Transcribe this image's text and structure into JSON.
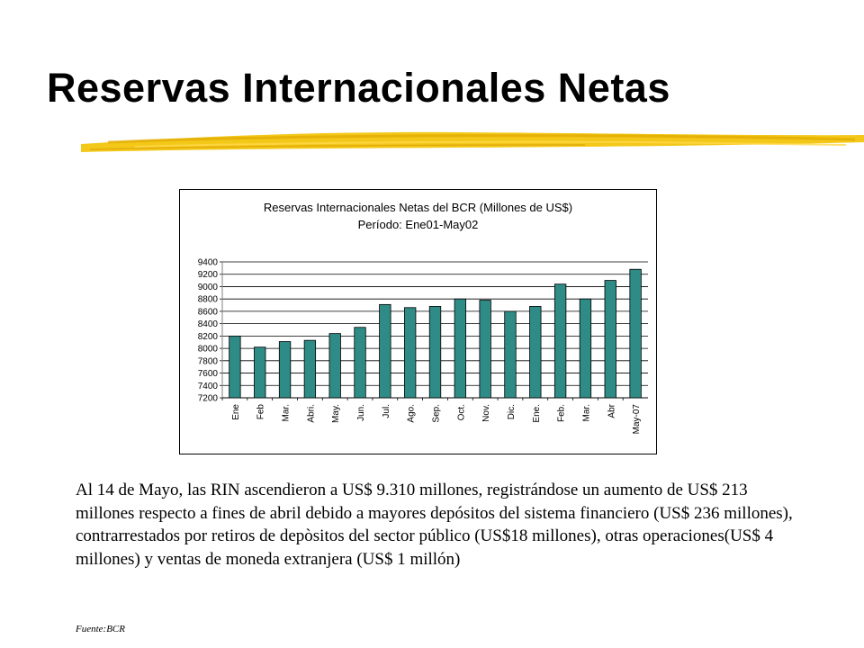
{
  "slide": {
    "title": "Reservas Internacionales Netas",
    "paragraph": "Al 14 de Mayo, las RIN ascendieron a US$ 9.310 millones, registrándose un aumento de US$ 213 millones respecto a fines de abril debido a mayores depósitos del sistema financiero (US$ 236 millones), contrarrestados por retiros de depòsitos del sector público (US$18 millones), otras operaciones(US$ 4 millones) y ventas de moneda extranjera (US$ 1 millón)",
    "source": "Fuente:BCR",
    "accent_color": "#f2c200"
  },
  "chart_data": {
    "type": "bar",
    "title": "Reservas Internacionales Netas del BCR (Millones de US$)",
    "subtitle": "Período: Ene01-May02",
    "xlabel": "",
    "ylabel": "",
    "categories": [
      "Ene",
      "Feb",
      "Mar.",
      "Abri.",
      "May.",
      "Jun.",
      "Jul.",
      "Ago.",
      "Sep.",
      "Oct.",
      "Nov.",
      "Dic.",
      "Ene.",
      "Feb.",
      "Mar.",
      "Abr",
      "May-07"
    ],
    "values": [
      8200,
      8020,
      8110,
      8130,
      8240,
      8340,
      8710,
      8660,
      8680,
      8800,
      8780,
      8600,
      8680,
      9040,
      8800,
      9100,
      9280
    ],
    "ylim": [
      7200,
      9400
    ],
    "yticks": [
      7200,
      7400,
      7600,
      7800,
      8000,
      8200,
      8400,
      8600,
      8800,
      9000,
      9200,
      9400
    ],
    "grid": true,
    "bar_color": "#2e8b85",
    "legend": "none"
  }
}
